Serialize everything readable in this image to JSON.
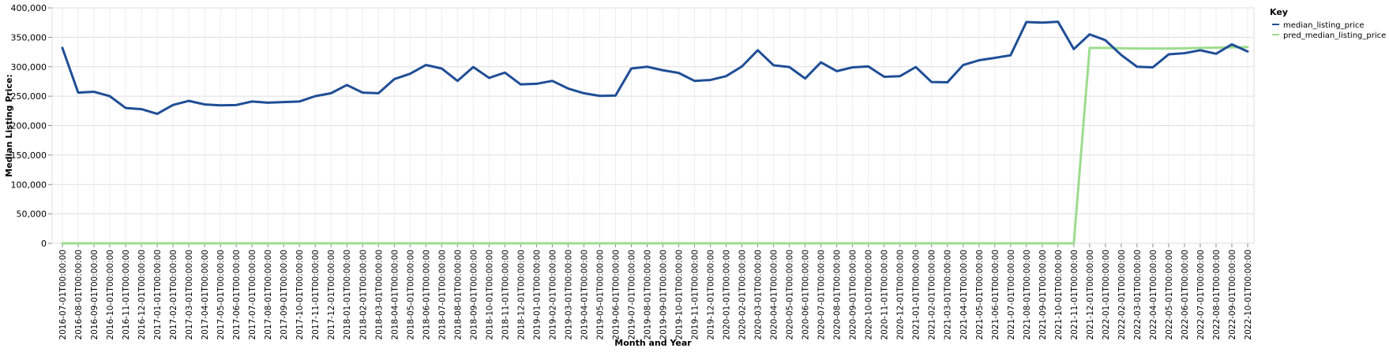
{
  "chart_data": {
    "type": "line",
    "xlabel": "Month and Year",
    "ylabel": "Median Listing Price:",
    "ylim": [
      0,
      400000
    ],
    "yticks": [
      "0",
      "50,000",
      "100,000",
      "150,000",
      "200,000",
      "250,000",
      "300,000",
      "350,000",
      "400,000"
    ],
    "grid": true,
    "legend": {
      "title": "Key",
      "placement": "top-right"
    },
    "x": [
      "2016-07-01T00:00:00",
      "2016-08-01T00:00:00",
      "2016-09-01T00:00:00",
      "2016-10-01T00:00:00",
      "2016-11-01T00:00:00",
      "2016-12-01T00:00:00",
      "2017-01-01T00:00:00",
      "2017-02-01T00:00:00",
      "2017-03-01T00:00:00",
      "2017-04-01T00:00:00",
      "2017-05-01T00:00:00",
      "2017-06-01T00:00:00",
      "2017-07-01T00:00:00",
      "2017-08-01T00:00:00",
      "2017-09-01T00:00:00",
      "2017-10-01T00:00:00",
      "2017-11-01T00:00:00",
      "2017-12-01T00:00:00",
      "2018-01-01T00:00:00",
      "2018-02-01T00:00:00",
      "2018-03-01T00:00:00",
      "2018-04-01T00:00:00",
      "2018-05-01T00:00:00",
      "2018-06-01T00:00:00",
      "2018-07-01T00:00:00",
      "2018-08-01T00:00:00",
      "2018-09-01T00:00:00",
      "2018-10-01T00:00:00",
      "2018-11-01T00:00:00",
      "2018-12-01T00:00:00",
      "2019-01-01T00:00:00",
      "2019-02-01T00:00:00",
      "2019-03-01T00:00:00",
      "2019-04-01T00:00:00",
      "2019-05-01T00:00:00",
      "2019-06-01T00:00:00",
      "2019-07-01T00:00:00",
      "2019-08-01T00:00:00",
      "2019-09-01T00:00:00",
      "2019-10-01T00:00:00",
      "2019-11-01T00:00:00",
      "2019-12-01T00:00:00",
      "2020-01-01T00:00:00",
      "2020-02-01T00:00:00",
      "2020-03-01T00:00:00",
      "2020-04-01T00:00:00",
      "2020-05-01T00:00:00",
      "2020-06-01T00:00:00",
      "2020-07-01T00:00:00",
      "2020-08-01T00:00:00",
      "2020-09-01T00:00:00",
      "2020-10-01T00:00:00",
      "2020-11-01T00:00:00",
      "2020-12-01T00:00:00",
      "2021-01-01T00:00:00",
      "2021-02-01T00:00:00",
      "2021-03-01T00:00:00",
      "2021-04-01T00:00:00",
      "2021-05-01T00:00:00",
      "2021-06-01T00:00:00",
      "2021-07-01T00:00:00",
      "2021-08-01T00:00:00",
      "2021-09-01T00:00:00",
      "2021-10-01T00:00:00",
      "2021-11-01T00:00:00",
      "2021-12-01T00:00:00",
      "2022-01-01T00:00:00",
      "2022-02-01T00:00:00",
      "2022-03-01T00:00:00",
      "2022-04-01T00:00:00",
      "2022-05-01T00:00:00",
      "2022-06-01T00:00:00",
      "2022-07-01T00:00:00",
      "2022-08-01T00:00:00",
      "2022-09-01T00:00:00",
      "2022-10-01T00:00:00"
    ],
    "series": [
      {
        "name": "median_listing_price",
        "color": "#1f4e96",
        "values": [
          332000,
          256000,
          257500,
          250000,
          230000,
          228000,
          220000,
          235000,
          242000,
          236000,
          234500,
          235000,
          241000,
          239000,
          240000,
          241000,
          250000,
          255000,
          269000,
          256000,
          255000,
          279000,
          288000,
          303000,
          297000,
          276000,
          299500,
          281000,
          290000,
          270000,
          271000,
          276000,
          263000,
          255000,
          250500,
          251000,
          297000,
          300000,
          294000,
          289500,
          276000,
          277500,
          284000,
          300500,
          328000,
          302500,
          299500,
          280000,
          307500,
          292500,
          299000,
          300500,
          283000,
          284000,
          299500,
          274000,
          273500,
          303000,
          311000,
          315000,
          319500,
          376000,
          375000,
          376500,
          330000,
          355000,
          345000,
          320000,
          300000,
          299000,
          321000,
          323000,
          328000,
          322000,
          338000,
          326000
        ]
      },
      {
        "name": "pred_median_listing_price",
        "color": "#9ddc8f",
        "values": [
          0,
          0,
          0,
          0,
          0,
          0,
          0,
          0,
          0,
          0,
          0,
          0,
          0,
          0,
          0,
          0,
          0,
          0,
          0,
          0,
          0,
          0,
          0,
          0,
          0,
          0,
          0,
          0,
          0,
          0,
          0,
          0,
          0,
          0,
          0,
          0,
          0,
          0,
          0,
          0,
          0,
          0,
          0,
          0,
          0,
          0,
          0,
          0,
          0,
          0,
          0,
          0,
          0,
          0,
          0,
          0,
          0,
          0,
          0,
          0,
          0,
          0,
          0,
          0,
          0,
          332000,
          332000,
          331500,
          331000,
          331000,
          331000,
          331500,
          332000,
          332500,
          333000,
          333500
        ]
      }
    ]
  }
}
